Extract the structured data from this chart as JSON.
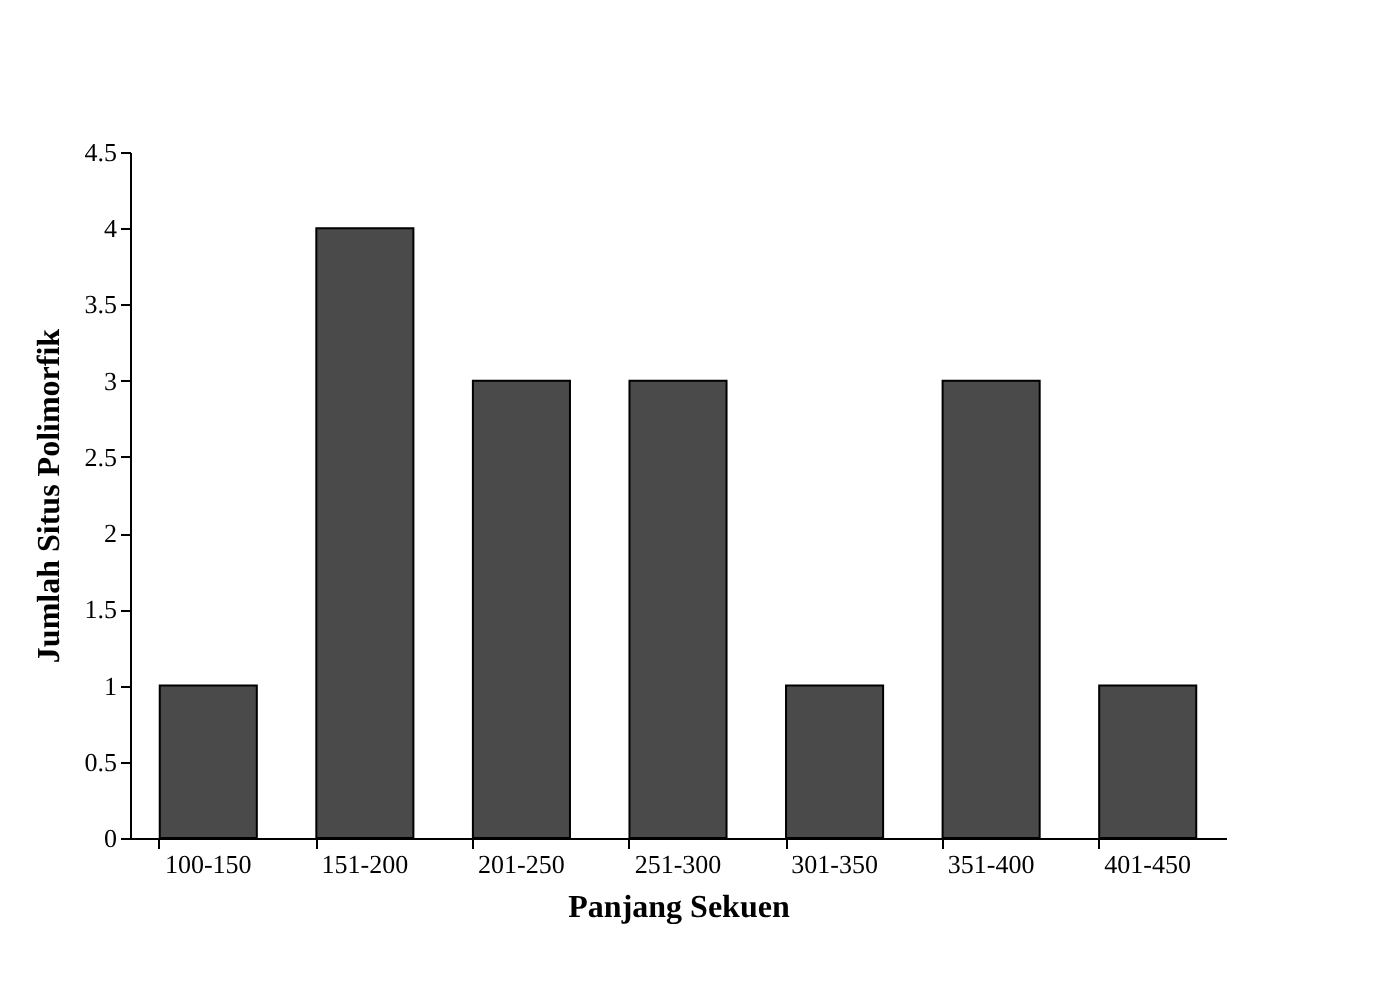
{
  "chart_data": {
    "type": "bar",
    "xlabel": "Panjang Sekuen",
    "ylabel": "Jumlah Situs Polimorfik",
    "categories": [
      "100-150",
      "151-200",
      "201-250",
      "251-300",
      "301-350",
      "351-400",
      "401-450"
    ],
    "values": [
      1,
      4,
      3,
      3,
      1,
      3,
      1
    ],
    "color": "#4a4a4a",
    "ylim": [
      0,
      4.5
    ],
    "yticks": [
      0,
      0.5,
      1,
      1.5,
      2,
      2.5,
      3,
      3.5,
      4,
      4.5
    ],
    "grid": false
  }
}
